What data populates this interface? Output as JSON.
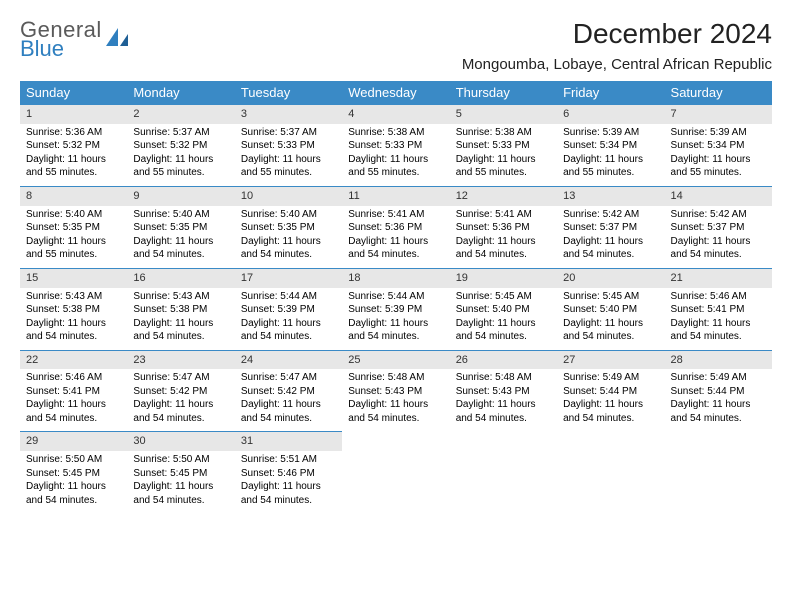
{
  "brand": {
    "top": "General",
    "bottom": "Blue"
  },
  "title": "December 2024",
  "location": "Mongoumba, Lobaye, Central African Republic",
  "colors": {
    "header_bg": "#3a8ac6",
    "header_fg": "#ffffff",
    "daynum_bg": "#e7e7e7",
    "row_rule": "#3a8ac6",
    "logo_gray": "#5a5a5a",
    "logo_blue": "#2f7fbf"
  },
  "weekdays": [
    "Sunday",
    "Monday",
    "Tuesday",
    "Wednesday",
    "Thursday",
    "Friday",
    "Saturday"
  ],
  "weeks": [
    [
      {
        "n": "1",
        "sr": "5:36 AM",
        "ss": "5:32 PM",
        "dl": "11 hours and 55 minutes."
      },
      {
        "n": "2",
        "sr": "5:37 AM",
        "ss": "5:32 PM",
        "dl": "11 hours and 55 minutes."
      },
      {
        "n": "3",
        "sr": "5:37 AM",
        "ss": "5:33 PM",
        "dl": "11 hours and 55 minutes."
      },
      {
        "n": "4",
        "sr": "5:38 AM",
        "ss": "5:33 PM",
        "dl": "11 hours and 55 minutes."
      },
      {
        "n": "5",
        "sr": "5:38 AM",
        "ss": "5:33 PM",
        "dl": "11 hours and 55 minutes."
      },
      {
        "n": "6",
        "sr": "5:39 AM",
        "ss": "5:34 PM",
        "dl": "11 hours and 55 minutes."
      },
      {
        "n": "7",
        "sr": "5:39 AM",
        "ss": "5:34 PM",
        "dl": "11 hours and 55 minutes."
      }
    ],
    [
      {
        "n": "8",
        "sr": "5:40 AM",
        "ss": "5:35 PM",
        "dl": "11 hours and 55 minutes."
      },
      {
        "n": "9",
        "sr": "5:40 AM",
        "ss": "5:35 PM",
        "dl": "11 hours and 54 minutes."
      },
      {
        "n": "10",
        "sr": "5:40 AM",
        "ss": "5:35 PM",
        "dl": "11 hours and 54 minutes."
      },
      {
        "n": "11",
        "sr": "5:41 AM",
        "ss": "5:36 PM",
        "dl": "11 hours and 54 minutes."
      },
      {
        "n": "12",
        "sr": "5:41 AM",
        "ss": "5:36 PM",
        "dl": "11 hours and 54 minutes."
      },
      {
        "n": "13",
        "sr": "5:42 AM",
        "ss": "5:37 PM",
        "dl": "11 hours and 54 minutes."
      },
      {
        "n": "14",
        "sr": "5:42 AM",
        "ss": "5:37 PM",
        "dl": "11 hours and 54 minutes."
      }
    ],
    [
      {
        "n": "15",
        "sr": "5:43 AM",
        "ss": "5:38 PM",
        "dl": "11 hours and 54 minutes."
      },
      {
        "n": "16",
        "sr": "5:43 AM",
        "ss": "5:38 PM",
        "dl": "11 hours and 54 minutes."
      },
      {
        "n": "17",
        "sr": "5:44 AM",
        "ss": "5:39 PM",
        "dl": "11 hours and 54 minutes."
      },
      {
        "n": "18",
        "sr": "5:44 AM",
        "ss": "5:39 PM",
        "dl": "11 hours and 54 minutes."
      },
      {
        "n": "19",
        "sr": "5:45 AM",
        "ss": "5:40 PM",
        "dl": "11 hours and 54 minutes."
      },
      {
        "n": "20",
        "sr": "5:45 AM",
        "ss": "5:40 PM",
        "dl": "11 hours and 54 minutes."
      },
      {
        "n": "21",
        "sr": "5:46 AM",
        "ss": "5:41 PM",
        "dl": "11 hours and 54 minutes."
      }
    ],
    [
      {
        "n": "22",
        "sr": "5:46 AM",
        "ss": "5:41 PM",
        "dl": "11 hours and 54 minutes."
      },
      {
        "n": "23",
        "sr": "5:47 AM",
        "ss": "5:42 PM",
        "dl": "11 hours and 54 minutes."
      },
      {
        "n": "24",
        "sr": "5:47 AM",
        "ss": "5:42 PM",
        "dl": "11 hours and 54 minutes."
      },
      {
        "n": "25",
        "sr": "5:48 AM",
        "ss": "5:43 PM",
        "dl": "11 hours and 54 minutes."
      },
      {
        "n": "26",
        "sr": "5:48 AM",
        "ss": "5:43 PM",
        "dl": "11 hours and 54 minutes."
      },
      {
        "n": "27",
        "sr": "5:49 AM",
        "ss": "5:44 PM",
        "dl": "11 hours and 54 minutes."
      },
      {
        "n": "28",
        "sr": "5:49 AM",
        "ss": "5:44 PM",
        "dl": "11 hours and 54 minutes."
      }
    ],
    [
      {
        "n": "29",
        "sr": "5:50 AM",
        "ss": "5:45 PM",
        "dl": "11 hours and 54 minutes."
      },
      {
        "n": "30",
        "sr": "5:50 AM",
        "ss": "5:45 PM",
        "dl": "11 hours and 54 minutes."
      },
      {
        "n": "31",
        "sr": "5:51 AM",
        "ss": "5:46 PM",
        "dl": "11 hours and 54 minutes."
      },
      null,
      null,
      null,
      null
    ]
  ],
  "labels": {
    "sunrise": "Sunrise:",
    "sunset": "Sunset:",
    "daylight": "Daylight:"
  }
}
